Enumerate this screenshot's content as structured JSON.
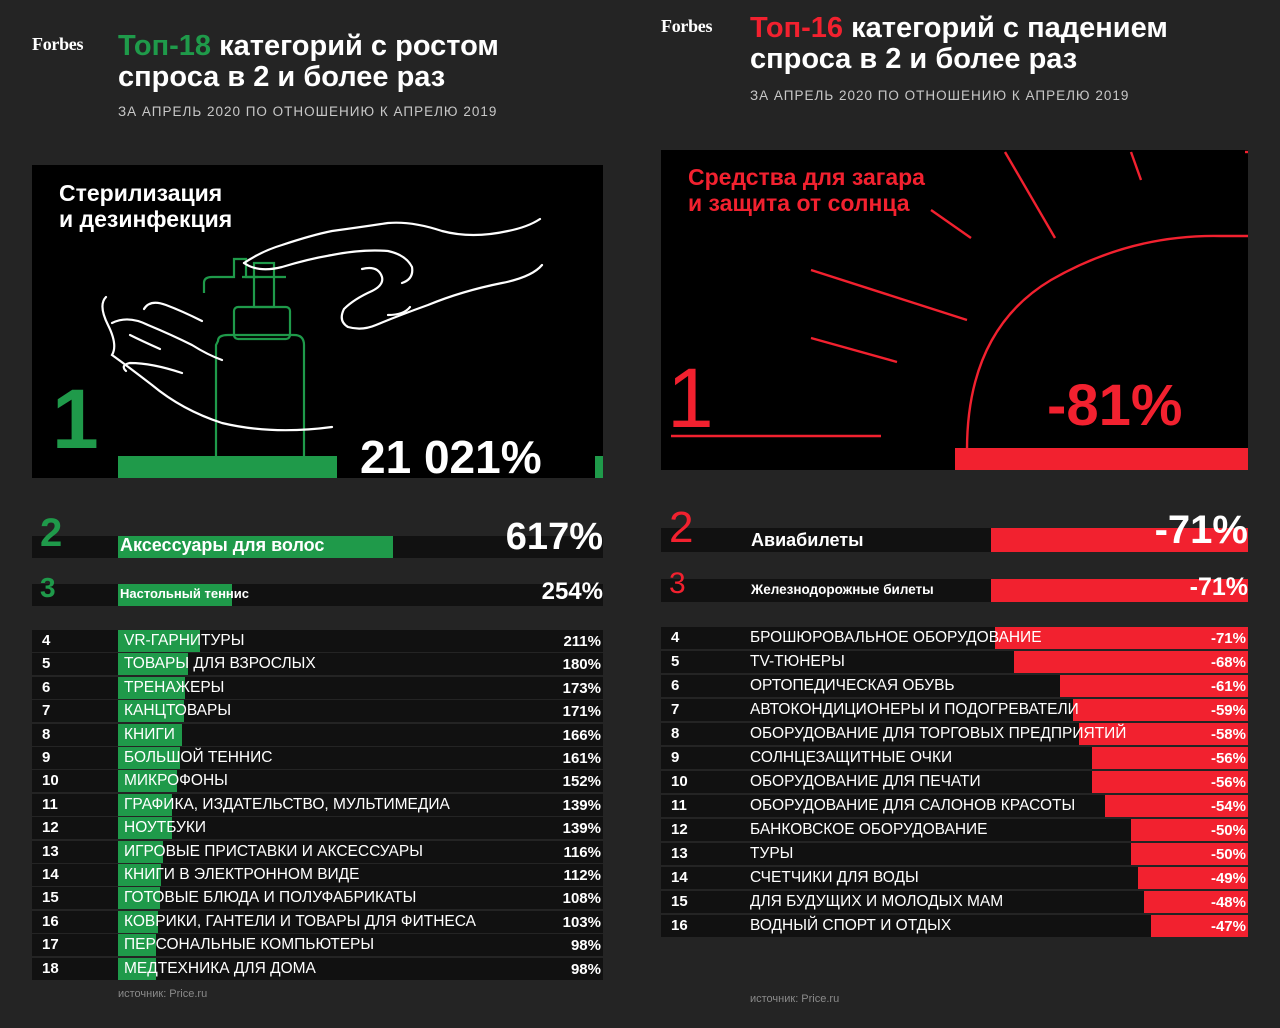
{
  "left": {
    "logo": "Forbes",
    "title_accent": "Топ-18",
    "title_rest_1": " категорий с ростом",
    "title_line2": "спроса в 2 и более раз",
    "subtitle": "ЗА АПРЕЛЬ 2020 ПО ОТНОШЕНИЮ К АПРЕЛЮ 2019",
    "hero": {
      "rank": "1",
      "label_l1": "Стерилизация",
      "label_l2": "и дезинфекция",
      "value": "21 021%"
    },
    "second": {
      "rank": "2",
      "label": "Аксессуары для волос",
      "value": "617%"
    },
    "third": {
      "rank": "3",
      "label": "Настольный теннис",
      "value": "254%"
    },
    "source": "источник: Price.ru"
  },
  "right": {
    "logo": "Forbes",
    "title_accent": "Топ-16",
    "title_rest_1": " категорий с падением",
    "title_line2": "спроса в 2 и более раз",
    "subtitle": "ЗА АПРЕЛЬ 2020 ПО ОТНОШЕНИЮ К АПРЕЛЮ 2019",
    "hero": {
      "rank": "1",
      "label_l1": "Средства для загара",
      "label_l2": "и защита от солнца",
      "value": "-81%"
    },
    "second": {
      "rank": "2",
      "label": "Авиабилеты",
      "value": "-71%"
    },
    "third": {
      "rank": "3",
      "label": "Железнодорожные билеты",
      "value": "-71%"
    },
    "source": "источник: Price.ru"
  },
  "colors": {
    "green": "#1f9a4a",
    "red": "#f2212f",
    "row_bg": "#111111"
  },
  "chart_data": [
    {
      "type": "bar",
      "unit": "%",
      "categories": [
        "Стерилизация и дезинфекция",
        "Аксессуары для волос",
        "Настольный теннис",
        "VR-ГАРНИТУРЫ",
        "ТОВАРЫ ДЛЯ ВЗРОСЛЫХ",
        "ТРЕНАЖЕРЫ",
        "КАНЦТОВАРЫ",
        "КНИГИ",
        "БОЛЬШОЙ ТЕННИС",
        "МИКРОФОНЫ",
        "ГРАФИКА, ИЗДАТЕЛЬСТВО, МУЛЬТИМЕДИА",
        "НОУТБУКИ",
        "ИГРОВЫЕ ПРИСТАВКИ И АКСЕССУАРЫ",
        "КНИГИ В ЭЛЕКТРОННОМ ВИДЕ",
        "ГОТОВЫЕ БЛЮДА И ПОЛУФАБРИКАТЫ",
        "КОВРИКИ, ГАНТЕЛИ И ТОВАРЫ ДЛЯ ФИТНЕСА",
        "ПЕРСОНАЛЬНЫЕ КОМПЬЮТЕРЫ",
        "МЕДТЕХНИКА ДЛЯ ДОМА"
      ],
      "values": [
        21021,
        617,
        254,
        211,
        180,
        173,
        171,
        166,
        161,
        152,
        139,
        139,
        116,
        112,
        108,
        103,
        98,
        98
      ],
      "labels": [
        "21 021%",
        "617%",
        "254%",
        "211%",
        "180%",
        "173%",
        "171%",
        "166%",
        "161%",
        "152%",
        "139%",
        "139%",
        "116%",
        "112%",
        "108%",
        "103%",
        "98%",
        "98%"
      ],
      "ranks": [
        "1",
        "2",
        "3",
        "4",
        "5",
        "6",
        "7",
        "8",
        "9",
        "10",
        "11",
        "12",
        "13",
        "14",
        "15",
        "16",
        "17",
        "18"
      ]
    },
    {
      "type": "bar",
      "unit": "%",
      "categories": [
        "Средства для загара и защита от солнца",
        "Авиабилеты",
        "Железнодорожные билеты",
        "БРОШЮРОВАЛЬНОЕ ОБОРУДОВАНИЕ",
        "TV-ТЮНЕРЫ",
        "ОРТОПЕДИЧЕСКАЯ ОБУВЬ",
        "АВТОКОНДИЦИОНЕРЫ И ПОДОГРЕВАТЕЛИ",
        "ОБОРУДОВАНИЕ ДЛЯ ТОРГОВЫХ ПРЕДПРИЯТИЙ",
        "СОЛНЦЕЗАЩИТНЫЕ ОЧКИ",
        "ОБОРУДОВАНИЕ ДЛЯ ПЕЧАТИ",
        "ОБОРУДОВАНИЕ ДЛЯ САЛОНОВ КРАСОТЫ",
        "БАНКОВСКОЕ ОБОРУДОВАНИЕ",
        "ТУРЫ",
        "СЧЕТЧИКИ ДЛЯ ВОДЫ",
        "ДЛЯ БУДУЩИХ И МОЛОДЫХ МАМ",
        "ВОДНЫЙ СПОРТ И ОТДЫХ"
      ],
      "values": [
        -81,
        -71,
        -71,
        -71,
        -68,
        -61,
        -59,
        -58,
        -56,
        -56,
        -54,
        -50,
        -50,
        -49,
        -48,
        -47
      ],
      "labels": [
        "-81%",
        "-71%",
        "-71%",
        "-71%",
        "-68%",
        "-61%",
        "-59%",
        "-58%",
        "-56%",
        "-56%",
        "-54%",
        "-50%",
        "-50%",
        "-49%",
        "-48%",
        "-47%"
      ],
      "ranks": [
        "1",
        "2",
        "3",
        "4",
        "5",
        "6",
        "7",
        "8",
        "9",
        "10",
        "11",
        "12",
        "13",
        "14",
        "15",
        "16"
      ]
    }
  ]
}
